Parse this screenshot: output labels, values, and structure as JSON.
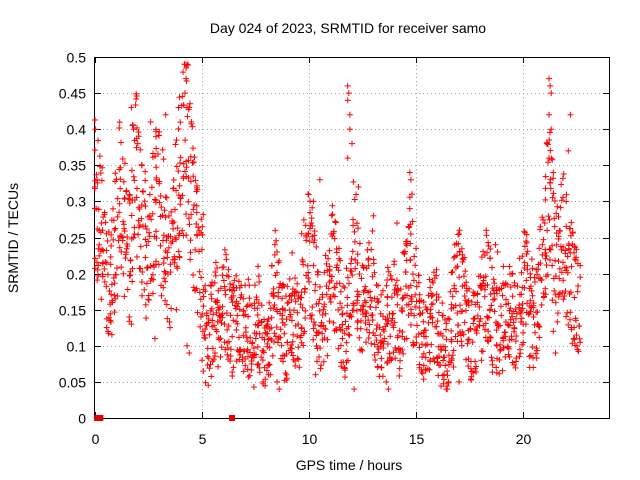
{
  "chart_data": {
    "type": "scatter",
    "title": "Day 024 of 2023, SRMTID for receiver samo",
    "xlabel": "GPS time / hours",
    "ylabel": "SRMTID / TECUs",
    "xlim": [
      0,
      24
    ],
    "ylim": [
      0,
      0.5
    ],
    "xticks": [
      0,
      5,
      10,
      15,
      20
    ],
    "xtick_labels": [
      "0",
      "5",
      "10",
      "15",
      "20"
    ],
    "yticks": [
      0,
      0.05,
      0.1,
      0.15,
      0.2,
      0.25,
      0.3,
      0.35,
      0.4,
      0.45,
      0.5
    ],
    "ytick_labels": [
      "0",
      "0.05",
      "0.1",
      "0.15",
      "0.2",
      "0.25",
      "0.3",
      "0.35",
      "0.4",
      "0.45",
      "0.5"
    ],
    "grid": true,
    "marker": "+",
    "color": "#ff0000",
    "gap_markers_x": [
      0.1,
      0.25,
      6.4
    ],
    "series": [
      {
        "name": "SRMTID",
        "x": [
          0.0,
          0.1,
          0.2,
          0.3,
          0.4,
          0.5,
          0.6,
          0.7,
          0.8,
          0.9,
          1.0,
          1.1,
          1.2,
          1.3,
          1.4,
          1.5,
          1.6,
          1.7,
          1.8,
          1.9,
          2.0,
          2.1,
          2.2,
          2.3,
          2.4,
          2.5,
          2.6,
          2.7,
          2.8,
          2.9,
          3.0,
          3.1,
          3.2,
          3.3,
          3.4,
          3.5,
          3.6,
          3.7,
          3.8,
          3.9,
          4.0,
          4.1,
          4.2,
          4.3,
          4.4,
          4.5,
          4.6,
          4.7,
          4.8,
          4.9,
          5.0,
          5.1,
          5.2,
          5.3,
          5.4,
          5.5,
          5.6,
          5.7,
          5.8,
          5.9,
          6.0,
          6.1,
          6.2,
          6.3,
          6.4,
          6.5,
          6.6,
          6.7,
          6.8,
          6.9,
          7.0,
          7.1,
          7.2,
          7.3,
          7.4,
          7.5,
          7.6,
          7.7,
          7.8,
          7.9,
          8.0,
          8.1,
          8.2,
          8.3,
          8.4,
          8.5,
          8.6,
          8.7,
          8.8,
          8.9,
          9.0,
          9.1,
          9.2,
          9.3,
          9.4,
          9.5,
          9.6,
          9.7,
          9.8,
          9.9,
          10.0,
          10.1,
          10.2,
          10.3,
          10.4,
          10.5,
          10.6,
          10.7,
          10.8,
          10.9,
          11.0,
          11.1,
          11.2,
          11.3,
          11.4,
          11.5,
          11.6,
          11.7,
          11.8,
          11.9,
          12.0,
          12.1,
          12.2,
          12.3,
          12.4,
          12.5,
          12.6,
          12.7,
          12.8,
          12.9,
          13.0,
          13.1,
          13.2,
          13.3,
          13.4,
          13.5,
          13.6,
          13.7,
          13.8,
          13.9,
          14.0,
          14.1,
          14.2,
          14.3,
          14.4,
          14.5,
          14.6,
          14.7,
          14.8,
          14.9,
          15.0,
          15.1,
          15.2,
          15.3,
          15.4,
          15.5,
          15.6,
          15.7,
          15.8,
          15.9,
          16.0,
          16.1,
          16.2,
          16.3,
          16.4,
          16.5,
          16.6,
          16.7,
          16.8,
          16.9,
          17.0,
          17.1,
          17.2,
          17.3,
          17.4,
          17.5,
          17.6,
          17.7,
          17.8,
          17.9,
          18.0,
          18.1,
          18.2,
          18.3,
          18.4,
          18.5,
          18.6,
          18.7,
          18.8,
          18.9,
          19.0,
          19.1,
          19.2,
          19.3,
          19.4,
          19.5,
          19.6,
          19.7,
          19.8,
          19.9,
          20.0,
          20.1,
          20.2,
          20.3,
          20.4,
          20.5,
          20.6,
          20.7,
          20.8,
          20.9,
          21.0,
          21.1,
          21.2,
          21.3,
          21.4,
          21.5,
          21.6,
          21.7,
          21.8,
          21.9,
          22.0,
          22.1,
          22.2,
          22.3,
          22.4,
          22.5,
          22.6
        ],
        "y": [
          0.31,
          0.29,
          0.27,
          0.25,
          0.23,
          0.21,
          0.19,
          0.18,
          0.2,
          0.24,
          0.27,
          0.3,
          0.29,
          0.28,
          0.26,
          0.24,
          0.22,
          0.25,
          0.3,
          0.35,
          0.33,
          0.29,
          0.27,
          0.25,
          0.23,
          0.22,
          0.24,
          0.27,
          0.3,
          0.31,
          0.29,
          0.27,
          0.26,
          0.24,
          0.22,
          0.21,
          0.23,
          0.25,
          0.28,
          0.31,
          0.34,
          0.36,
          0.38,
          0.4,
          0.37,
          0.32,
          0.28,
          0.25,
          0.23,
          0.21,
          0.2,
          0.13,
          0.11,
          0.1,
          0.12,
          0.14,
          0.15,
          0.14,
          0.13,
          0.12,
          0.14,
          0.16,
          0.15,
          0.13,
          0.12,
          0.13,
          0.14,
          0.13,
          0.12,
          0.11,
          0.12,
          0.13,
          0.12,
          0.11,
          0.1,
          0.12,
          0.14,
          0.13,
          0.11,
          0.09,
          0.08,
          0.1,
          0.12,
          0.15,
          0.18,
          0.17,
          0.15,
          0.13,
          0.12,
          0.11,
          0.12,
          0.14,
          0.16,
          0.15,
          0.13,
          0.14,
          0.16,
          0.18,
          0.2,
          0.22,
          0.23,
          0.21,
          0.19,
          0.17,
          0.15,
          0.13,
          0.12,
          0.14,
          0.16,
          0.18,
          0.2,
          0.22,
          0.2,
          0.18,
          0.16,
          0.14,
          0.13,
          0.12,
          0.14,
          0.16,
          0.2,
          0.24,
          0.22,
          0.19,
          0.17,
          0.16,
          0.15,
          0.16,
          0.17,
          0.18,
          0.17,
          0.15,
          0.13,
          0.12,
          0.11,
          0.12,
          0.13,
          0.14,
          0.15,
          0.16,
          0.15,
          0.13,
          0.12,
          0.14,
          0.16,
          0.18,
          0.2,
          0.22,
          0.2,
          0.18,
          0.16,
          0.14,
          0.13,
          0.12,
          0.11,
          0.12,
          0.13,
          0.14,
          0.15,
          0.14,
          0.12,
          0.11,
          0.1,
          0.09,
          0.08,
          0.1,
          0.12,
          0.14,
          0.16,
          0.18,
          0.2,
          0.18,
          0.16,
          0.14,
          0.13,
          0.12,
          0.11,
          0.12,
          0.13,
          0.14,
          0.15,
          0.16,
          0.17,
          0.18,
          0.17,
          0.15,
          0.13,
          0.12,
          0.11,
          0.12,
          0.13,
          0.14,
          0.15,
          0.16,
          0.15,
          0.14,
          0.13,
          0.14,
          0.15,
          0.16,
          0.17,
          0.18,
          0.17,
          0.15,
          0.14,
          0.13,
          0.14,
          0.16,
          0.19,
          0.22,
          0.26,
          0.3,
          0.34,
          0.3,
          0.26,
          0.23,
          0.21,
          0.24,
          0.27,
          0.25,
          0.22,
          0.2,
          0.19,
          0.18,
          0.17,
          0.16,
          0.15
        ]
      }
    ],
    "highlight_points": [
      {
        "x": 1.7,
        "y": 0.43
      },
      {
        "x": 1.8,
        "y": 0.4
      },
      {
        "x": 2.0,
        "y": 0.38
      },
      {
        "x": 2.6,
        "y": 0.41
      },
      {
        "x": 3.3,
        "y": 0.42
      },
      {
        "x": 3.9,
        "y": 0.43
      },
      {
        "x": 4.2,
        "y": 0.49
      },
      {
        "x": 4.25,
        "y": 0.47
      },
      {
        "x": 4.2,
        "y": 0.45
      },
      {
        "x": 4.4,
        "y": 0.43
      },
      {
        "x": 4.5,
        "y": 0.41
      },
      {
        "x": 2.8,
        "y": 0.11
      },
      {
        "x": 3.8,
        "y": 0.15
      },
      {
        "x": 4.3,
        "y": 0.1
      },
      {
        "x": 4.4,
        "y": 0.09
      },
      {
        "x": 1.6,
        "y": 0.14
      },
      {
        "x": 1.7,
        "y": 0.13
      },
      {
        "x": 0.8,
        "y": 0.16
      },
      {
        "x": 0.9,
        "y": 0.17
      },
      {
        "x": 5.0,
        "y": 0.08
      },
      {
        "x": 5.6,
        "y": 0.09
      },
      {
        "x": 8.1,
        "y": 0.06
      },
      {
        "x": 8.5,
        "y": 0.05
      },
      {
        "x": 8.6,
        "y": 0.04
      },
      {
        "x": 8.4,
        "y": 0.24
      },
      {
        "x": 8.5,
        "y": 0.23
      },
      {
        "x": 10.1,
        "y": 0.27
      },
      {
        "x": 10.2,
        "y": 0.3
      },
      {
        "x": 10.5,
        "y": 0.33
      },
      {
        "x": 10.3,
        "y": 0.06
      },
      {
        "x": 11.8,
        "y": 0.46
      },
      {
        "x": 11.85,
        "y": 0.45
      },
      {
        "x": 11.8,
        "y": 0.44
      },
      {
        "x": 11.9,
        "y": 0.42
      },
      {
        "x": 11.9,
        "y": 0.4
      },
      {
        "x": 12.0,
        "y": 0.38
      },
      {
        "x": 11.8,
        "y": 0.36
      },
      {
        "x": 12.1,
        "y": 0.04
      },
      {
        "x": 12.3,
        "y": 0.32
      },
      {
        "x": 13.0,
        "y": 0.28
      },
      {
        "x": 13.6,
        "y": 0.05
      },
      {
        "x": 13.7,
        "y": 0.04
      },
      {
        "x": 14.1,
        "y": 0.27
      },
      {
        "x": 14.7,
        "y": 0.34
      },
      {
        "x": 14.75,
        "y": 0.33
      },
      {
        "x": 14.8,
        "y": 0.31
      },
      {
        "x": 14.7,
        "y": 0.29
      },
      {
        "x": 16.3,
        "y": 0.06
      },
      {
        "x": 16.5,
        "y": 0.05
      },
      {
        "x": 16.8,
        "y": 0.24
      },
      {
        "x": 17.0,
        "y": 0.05
      },
      {
        "x": 18.7,
        "y": 0.24
      },
      {
        "x": 18.8,
        "y": 0.23
      },
      {
        "x": 19.5,
        "y": 0.2
      },
      {
        "x": 20.3,
        "y": 0.07
      },
      {
        "x": 20.4,
        "y": 0.22
      },
      {
        "x": 21.0,
        "y": 0.27
      },
      {
        "x": 21.2,
        "y": 0.47
      },
      {
        "x": 21.25,
        "y": 0.46
      },
      {
        "x": 21.3,
        "y": 0.45
      },
      {
        "x": 21.2,
        "y": 0.42
      },
      {
        "x": 21.3,
        "y": 0.4
      },
      {
        "x": 21.1,
        "y": 0.38
      },
      {
        "x": 21.2,
        "y": 0.36
      },
      {
        "x": 21.4,
        "y": 0.34
      },
      {
        "x": 21.4,
        "y": 0.12
      },
      {
        "x": 21.5,
        "y": 0.09
      },
      {
        "x": 22.1,
        "y": 0.37
      },
      {
        "x": 22.2,
        "y": 0.42
      },
      {
        "x": 22.0,
        "y": 0.3
      },
      {
        "x": 22.4,
        "y": 0.22
      },
      {
        "x": 22.5,
        "y": 0.1
      },
      {
        "x": 0.1,
        "y": 0.33
      },
      {
        "x": 0.0,
        "y": 0.32
      },
      {
        "x": 0.3,
        "y": 0.27
      },
      {
        "x": 0.2,
        "y": 0.26
      }
    ]
  }
}
